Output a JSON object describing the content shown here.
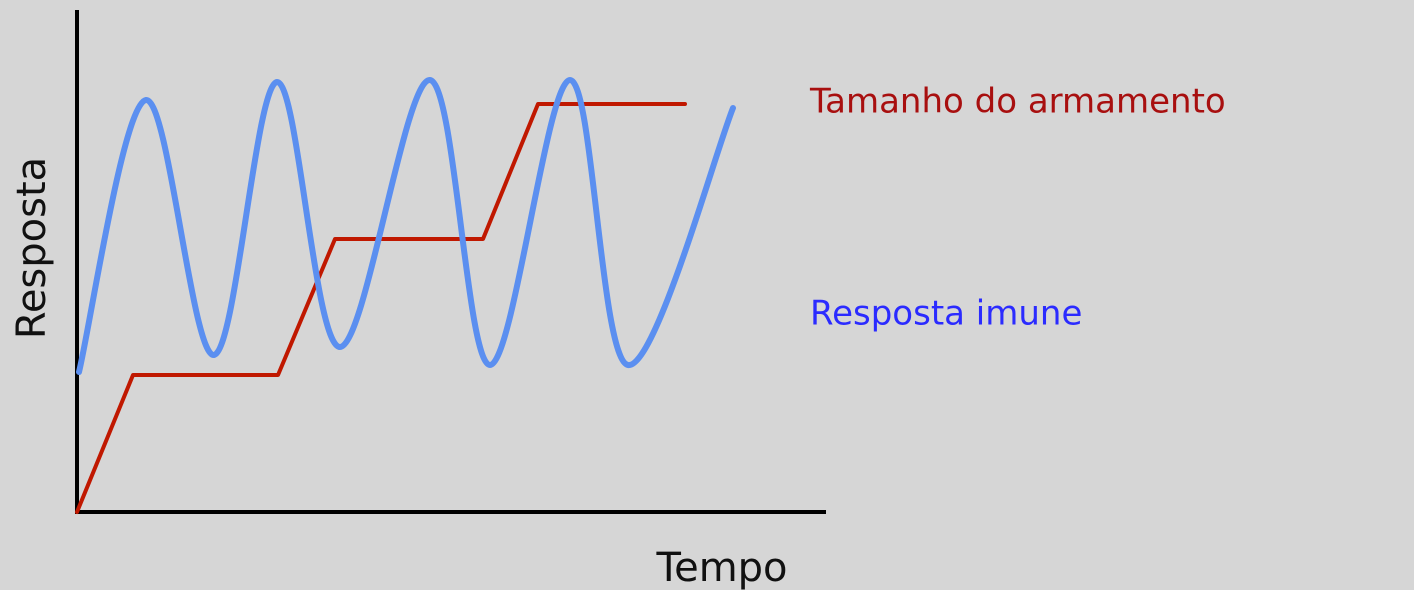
{
  "chart_data": {
    "type": "line",
    "x_label": "Tempo",
    "y_label": "Resposta",
    "xlim": [
      0,
      750
    ],
    "ylim": [
      0,
      500
    ],
    "legend": "right",
    "series": [
      {
        "name": "Tamanho do armamento",
        "color": "#c01800",
        "text_color": "#a80f0f",
        "x": [
          0,
          56,
          201,
          258,
          406,
          461,
          608
        ],
        "values": [
          0,
          137,
          137,
          273,
          273,
          408,
          408
        ]
      },
      {
        "name": "Resposta imune",
        "color": "#5b8ff0",
        "text_color": "#2b2bff",
        "smooth": true,
        "x": [
          2,
          69,
          137,
          200,
          263,
          353,
          413,
          493,
          551,
          656
        ],
        "values": [
          140,
          412,
          157,
          430,
          165,
          432,
          147,
          432,
          147,
          404
        ]
      }
    ]
  }
}
